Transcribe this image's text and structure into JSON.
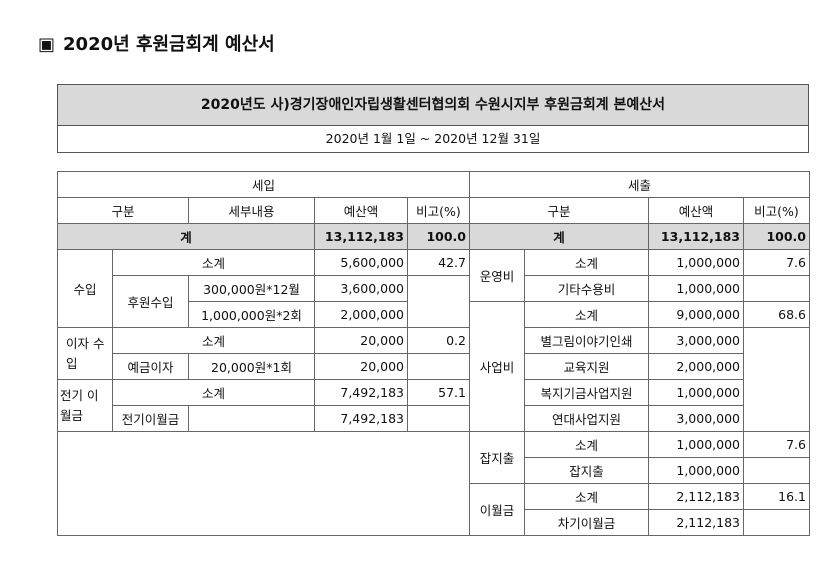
{
  "heading": {
    "marker": "▣",
    "text": "2020년 후원금회계 예산서"
  },
  "title": "2020년도 사)경기장애인자립생활센터협의회 수원시지부 후원금회계 본예산서",
  "period": "2020년 1월 1일 ~ 2020년 12월 31일",
  "income": {
    "header": "세입",
    "columns": [
      "구분",
      "세부내용",
      "예산액",
      "비고(%)"
    ],
    "total": {
      "label": "계",
      "amount": "13,112,183",
      "pct": "100.0"
    },
    "sections": [
      {
        "name": "수입",
        "subtotal_label": "소계",
        "subtotal_amount": "5,600,000",
        "subtotal_pct": "42.7",
        "item": "후원수입",
        "details": [
          {
            "desc": "300,000원*12월",
            "amount": "3,600,000"
          },
          {
            "desc": "1,000,000원*2회",
            "amount": "2,000,000"
          }
        ]
      },
      {
        "name": "이자 수입",
        "subtotal_label": "소계",
        "subtotal_amount": "20,000",
        "subtotal_pct": "0.2",
        "item": "예금이자",
        "details": [
          {
            "desc": "20,000원*1회",
            "amount": "20,000"
          }
        ]
      },
      {
        "name": "전기 이월금",
        "subtotal_label": "소계",
        "subtotal_amount": "7,492,183",
        "subtotal_pct": "57.1",
        "item": "전기이월금",
        "details": [
          {
            "desc": "",
            "amount": "7,492,183"
          }
        ]
      }
    ]
  },
  "expense": {
    "header": "세출",
    "columns": [
      "구분",
      "예산액",
      "비고(%)"
    ],
    "total": {
      "label": "계",
      "amount": "13,112,183",
      "pct": "100.0"
    },
    "sections": [
      {
        "name": "운영비",
        "subtotal_label": "소계",
        "subtotal_amount": "1,000,000",
        "subtotal_pct": "7.6",
        "items": [
          {
            "label": "기타수용비",
            "amount": "1,000,000"
          }
        ]
      },
      {
        "name": "사업비",
        "subtotal_label": "소계",
        "subtotal_amount": "9,000,000",
        "subtotal_pct": "68.6",
        "items": [
          {
            "label": "별그림이야기인쇄",
            "amount": "3,000,000"
          },
          {
            "label": "교육지원",
            "amount": "2,000,000"
          },
          {
            "label": "복지기금사업지원",
            "amount": "1,000,000"
          },
          {
            "label": "연대사업지원",
            "amount": "3,000,000"
          }
        ]
      },
      {
        "name": "잡지출",
        "subtotal_label": "소계",
        "subtotal_amount": "1,000,000",
        "subtotal_pct": "7.6",
        "items": [
          {
            "label": "잡지출",
            "amount": "1,000,000"
          }
        ]
      },
      {
        "name": "이월금",
        "subtotal_label": "소계",
        "subtotal_amount": "2,112,183",
        "subtotal_pct": "16.1",
        "items": [
          {
            "label": "차기이월금",
            "amount": "2,112,183"
          }
        ]
      }
    ]
  }
}
